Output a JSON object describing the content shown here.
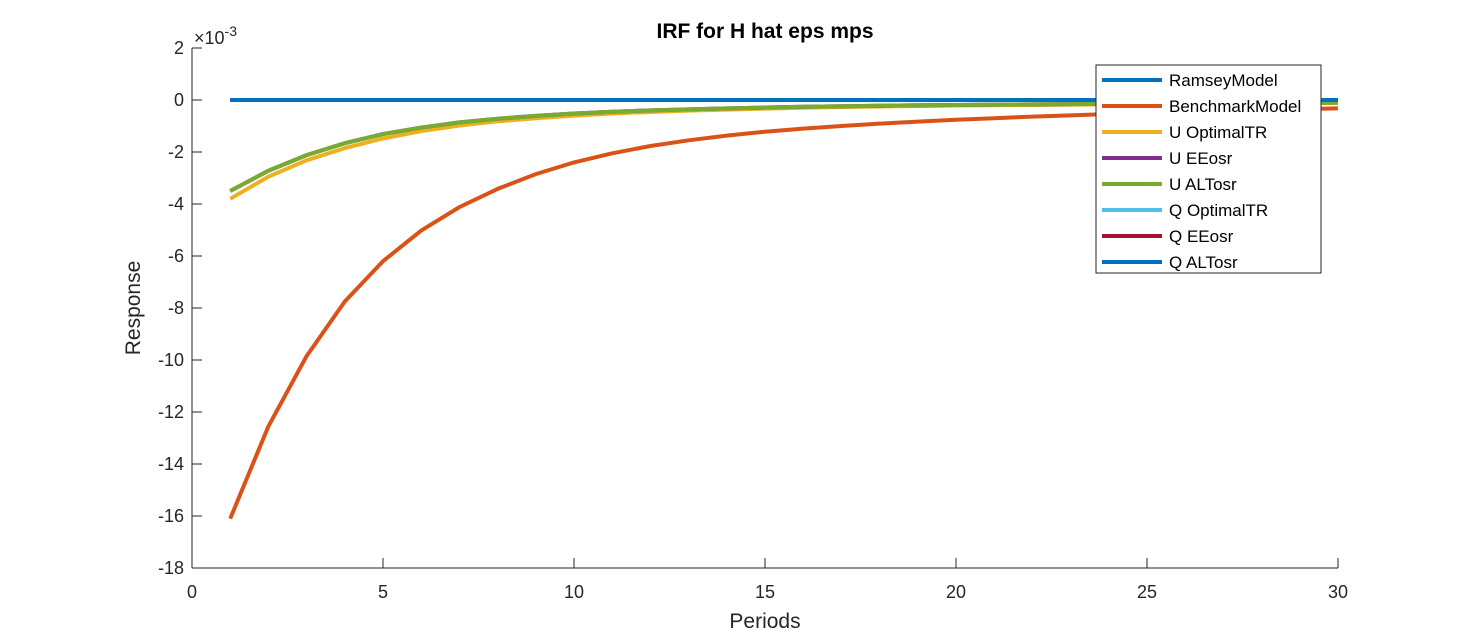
{
  "chart_data": {
    "type": "line",
    "title": "IRF for H hat eps mps",
    "xlabel": "Periods",
    "ylabel": "Response",
    "y_exponent_label": "×10",
    "y_exponent_power": "-3",
    "xlim": [
      0,
      30
    ],
    "ylim": [
      -0.018,
      0.002
    ],
    "xticks": [
      0,
      5,
      10,
      15,
      20,
      25,
      30
    ],
    "xtick_labels": [
      "0",
      "5",
      "10",
      "15",
      "20",
      "25",
      "30"
    ],
    "yticks": [
      0.002,
      0,
      -0.002,
      -0.004,
      -0.006,
      -0.008,
      -0.01,
      -0.012,
      -0.014,
      -0.016,
      -0.018
    ],
    "ytick_labels": [
      "2",
      "0",
      "-2",
      "-4",
      "-6",
      "-8",
      "-10",
      "-12",
      "-14",
      "-16",
      "-18"
    ],
    "grid": false,
    "legend_position": "top-right",
    "x": [
      1,
      2,
      3,
      4,
      5,
      6,
      7,
      8,
      9,
      10,
      11,
      12,
      13,
      14,
      15,
      16,
      17,
      18,
      19,
      20,
      21,
      22,
      23,
      24,
      25,
      26,
      27,
      28,
      29,
      30
    ],
    "series": [
      {
        "name": "RamseyModel",
        "color": "#0072BD",
        "values": [
          0,
          0,
          0,
          0,
          0,
          0,
          0,
          0,
          0,
          0,
          0,
          0,
          0,
          0,
          0,
          0,
          0,
          0,
          0,
          0,
          0,
          0,
          0,
          0,
          0,
          0,
          0,
          0,
          0,
          0
        ]
      },
      {
        "name": "BenchmarkModel",
        "color": "#D95319",
        "values": [
          -0.0161,
          -0.01255,
          -0.00985,
          -0.00775,
          -0.0062,
          -0.00502,
          -0.00412,
          -0.00342,
          -0.00285,
          -0.0024,
          -0.00205,
          -0.00177,
          -0.00155,
          -0.00137,
          -0.00122,
          -0.0011,
          -0.001,
          -0.00091,
          -0.00083,
          -0.00076,
          -0.0007,
          -0.00064,
          -0.00059,
          -0.00054,
          -0.0005,
          -0.00046,
          -0.00042,
          -0.00038,
          -0.00035,
          -0.00032
        ]
      },
      {
        "name": "U OptimalTR",
        "color": "#EDB120",
        "values": [
          -0.0038,
          -0.00295,
          -0.00232,
          -0.00185,
          -0.00148,
          -0.0012,
          -0.00098,
          -0.00082,
          -0.0007,
          -0.0006,
          -0.00052,
          -0.00046,
          -0.00041,
          -0.00037,
          -0.00033,
          -0.0003,
          -0.00027,
          -0.00025,
          -0.00023,
          -0.00021,
          -0.0002,
          -0.00019,
          -0.00018,
          -0.00017,
          -0.00016,
          -0.00015,
          -0.00014,
          -0.00013,
          -0.00012,
          -0.00011
        ]
      },
      {
        "name": "U EEosr",
        "color": "#7E2F8E",
        "values": [
          -0.0035,
          -0.00272,
          -0.00212,
          -0.00166,
          -0.00131,
          -0.00106,
          -0.00086,
          -0.00072,
          -0.00061,
          -0.00052,
          -0.00045,
          -0.0004,
          -0.00036,
          -0.00032,
          -0.00029,
          -0.00026,
          -0.00024,
          -0.00022,
          -0.0002,
          -0.00019,
          -0.00018,
          -0.00017,
          -0.00016,
          -0.00015,
          -0.00014,
          -0.00013,
          -0.00012,
          -0.00011,
          -0.0001,
          -0.0001
        ]
      },
      {
        "name": "U ALTosr",
        "color": "#77AC30",
        "values": [
          -0.0035,
          -0.00272,
          -0.00212,
          -0.00166,
          -0.00131,
          -0.00106,
          -0.00086,
          -0.00072,
          -0.00061,
          -0.00052,
          -0.00045,
          -0.0004,
          -0.00036,
          -0.00032,
          -0.00029,
          -0.00026,
          -0.00024,
          -0.00022,
          -0.0002,
          -0.00019,
          -0.00018,
          -0.00017,
          -0.00016,
          -0.00015,
          -0.00014,
          -0.00013,
          -0.00012,
          -0.00011,
          -0.0001,
          -0.0001
        ]
      },
      {
        "name": "Q OptimalTR",
        "color": "#4DBEEE",
        "values": [
          0,
          0,
          0,
          0,
          0,
          0,
          0,
          0,
          0,
          0,
          0,
          0,
          0,
          0,
          0,
          0,
          0,
          0,
          0,
          0,
          0,
          0,
          0,
          0,
          0,
          0,
          0,
          0,
          0,
          0
        ]
      },
      {
        "name": "Q EEosr",
        "color": "#A2142F",
        "values": [
          0,
          0,
          0,
          0,
          0,
          0,
          0,
          0,
          0,
          0,
          0,
          0,
          0,
          0,
          0,
          0,
          0,
          0,
          0,
          0,
          0,
          0,
          0,
          0,
          0,
          0,
          0,
          0,
          0,
          0
        ]
      },
      {
        "name": "Q ALTosr",
        "color": "#0072BD",
        "values": [
          0,
          0,
          0,
          0,
          0,
          0,
          0,
          0,
          0,
          0,
          0,
          0,
          0,
          0,
          0,
          0,
          0,
          0,
          0,
          0,
          0,
          0,
          0,
          0,
          0,
          0,
          0,
          0,
          0,
          0
        ]
      }
    ]
  }
}
